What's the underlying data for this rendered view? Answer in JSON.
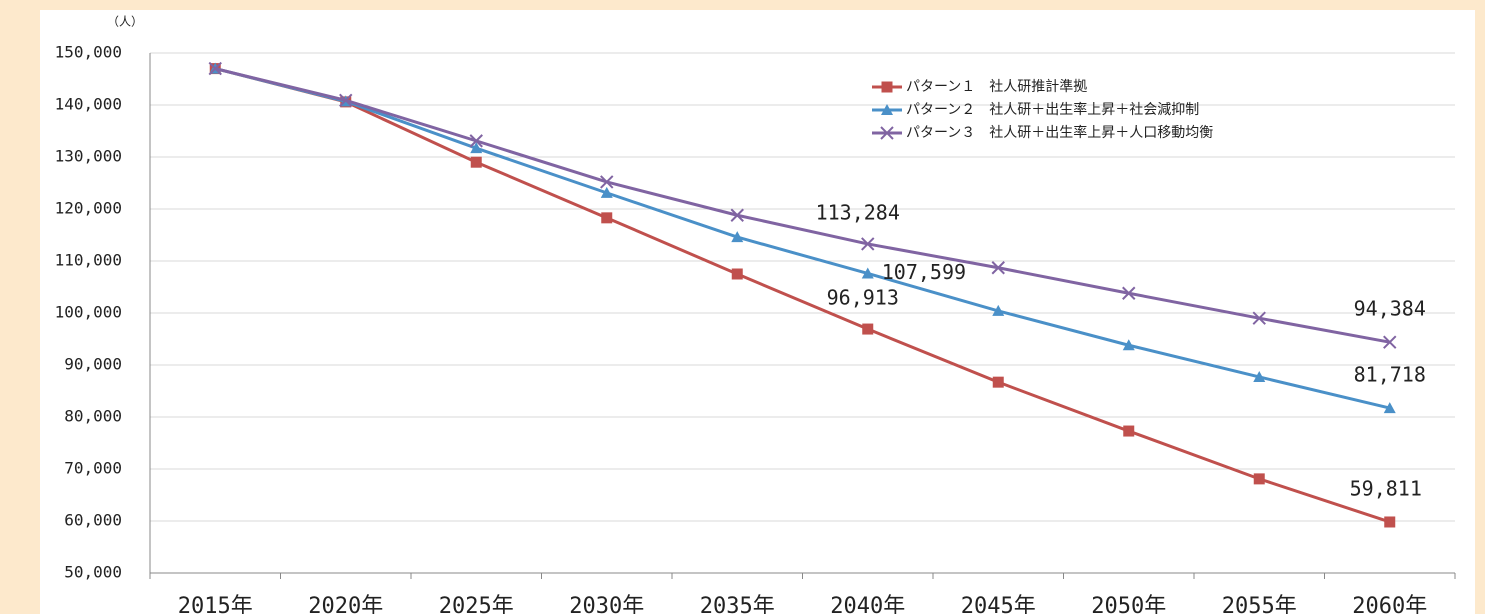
{
  "chart_data": {
    "type": "line",
    "y_unit": "（人）",
    "categories": [
      "2015年",
      "2020年",
      "2025年",
      "2030年",
      "2035年",
      "2040年",
      "2045年",
      "2050年",
      "2055年",
      "2060年"
    ],
    "series": [
      {
        "name": "パターン１　社人研推計準拠",
        "color": "#c0504d",
        "marker": "square",
        "values": [
          147000,
          140600,
          129000,
          118300,
          107500,
          96913,
          86700,
          77300,
          68100,
          59811
        ],
        "value_labels": [
          null,
          null,
          null,
          null,
          null,
          "96,913",
          null,
          null,
          null,
          "59,811"
        ]
      },
      {
        "name": "パターン２　社人研＋出生率上昇＋社会減抑制",
        "color": "#4a90c8",
        "marker": "triangle",
        "values": [
          147000,
          140700,
          131700,
          123100,
          114600,
          107599,
          100400,
          93800,
          87700,
          81718
        ],
        "value_labels": [
          null,
          null,
          null,
          null,
          null,
          "107,599",
          null,
          null,
          null,
          "81,718"
        ]
      },
      {
        "name": "パターン３　社人研＋出生率上昇＋人口移動均衡",
        "color": "#8064a2",
        "marker": "x",
        "values": [
          147000,
          140900,
          133100,
          125200,
          118800,
          113284,
          108700,
          103800,
          99000,
          94384
        ],
        "value_labels": [
          null,
          null,
          null,
          null,
          null,
          "113,284",
          null,
          null,
          null,
          "94,384"
        ]
      }
    ],
    "ylim": [
      50000,
      150000
    ],
    "yticks": [
      {
        "value": 50000,
        "label": "50,000"
      },
      {
        "value": 60000,
        "label": "60,000"
      },
      {
        "value": 70000,
        "label": "70,000"
      },
      {
        "value": 80000,
        "label": "80,000"
      },
      {
        "value": 90000,
        "label": "90,000"
      },
      {
        "value": 100000,
        "label": "100,000"
      },
      {
        "value": 110000,
        "label": "110,000"
      },
      {
        "value": 120000,
        "label": "120,000"
      },
      {
        "value": 130000,
        "label": "130,000"
      },
      {
        "value": 140000,
        "label": "140,000"
      },
      {
        "value": 150000,
        "label": "150,000"
      }
    ],
    "grid": true,
    "legend": "top-right"
  }
}
